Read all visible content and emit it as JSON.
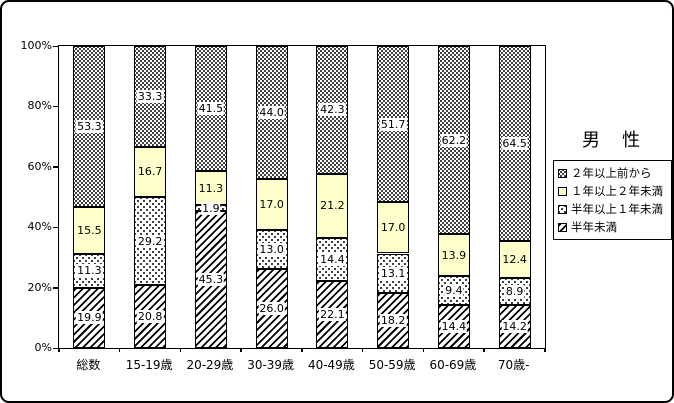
{
  "title": "男　性",
  "y_axis": {
    "tick_labels": [
      "0%",
      "20%",
      "40%",
      "60%",
      "80%",
      "100%"
    ],
    "tick_values": [
      0,
      20,
      40,
      60,
      80,
      100
    ]
  },
  "legend": {
    "items": [
      {
        "label": "２年以上前から",
        "pattern": "dense"
      },
      {
        "label": "１年以上２年未満",
        "pattern": "yellow"
      },
      {
        "label": "半年以上１年未満",
        "pattern": "sparse"
      },
      {
        "label": "半年未満",
        "pattern": "hatch"
      }
    ]
  },
  "colors": {
    "series_yellow": "#FFFFCC",
    "pattern_ink": "#000000",
    "background": "#FFFFFF"
  },
  "chart_data": {
    "type": "bar",
    "stacked": true,
    "percent_stacked": true,
    "title": "男　性",
    "categories": [
      "総数",
      "15-19歳",
      "20-29歳",
      "30-39歳",
      "40-49歳",
      "50-59歳",
      "60-69歳",
      "70歳-"
    ],
    "series": [
      {
        "name": "半年未満",
        "pattern": "hatch",
        "values": [
          19.9,
          20.8,
          45.3,
          26.0,
          22.1,
          18.2,
          14.4,
          14.2
        ]
      },
      {
        "name": "半年以上１年未満",
        "pattern": "sparse",
        "values": [
          11.3,
          29.2,
          1.9,
          13.0,
          14.4,
          13.1,
          9.4,
          8.9
        ]
      },
      {
        "name": "１年以上２年未満",
        "pattern": "yellow",
        "values": [
          15.5,
          16.7,
          11.3,
          17.0,
          21.2,
          17.0,
          13.9,
          12.4
        ]
      },
      {
        "name": "２年以上前から",
        "pattern": "dense",
        "values": [
          53.3,
          33.3,
          41.5,
          44.0,
          42.3,
          51.7,
          62.2,
          64.5
        ]
      }
    ],
    "ylim": [
      0,
      100
    ],
    "y_tick_labels": [
      "0%",
      "20%",
      "40%",
      "60%",
      "80%",
      "100%"
    ],
    "grid": false,
    "legend_position": "right",
    "data_labels": true
  }
}
